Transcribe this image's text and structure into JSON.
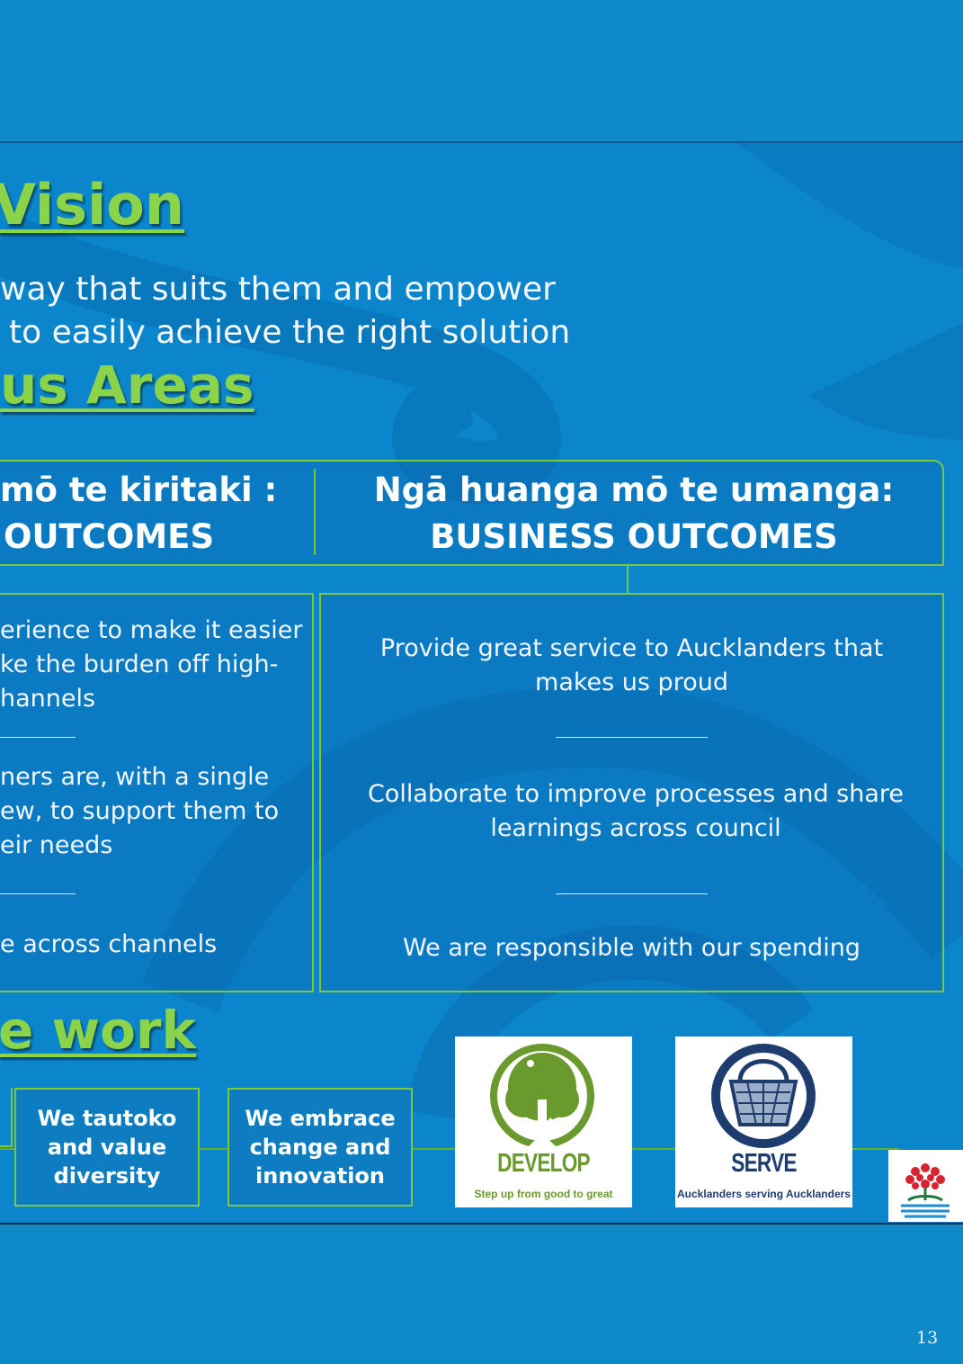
{
  "vision": {
    "heading": "Vision",
    "line1": "way that suits them and empower",
    "line2": "to easily achieve the right solution"
  },
  "focus": {
    "heading": "us Areas"
  },
  "customer": {
    "header_line1": "mō te kiritaki :",
    "header_line2": "OUTCOMES",
    "item1": [
      "erience to make it easier",
      "ke the burden off high-",
      "hannels"
    ],
    "item2": [
      "ners are, with a single",
      "ew, to support them to",
      "eir needs"
    ],
    "item3": [
      "e across channels"
    ]
  },
  "business": {
    "header_line1": "Ngā huanga mō te umanga:",
    "header_line2": "BUSINESS OUTCOMES",
    "item1": [
      "Provide great service to Aucklanders that",
      "makes us proud"
    ],
    "item2": [
      "Collaborate to improve processes and share",
      "learnings across council"
    ],
    "item3": [
      "We are responsible with our spending"
    ]
  },
  "how": {
    "heading": "e work"
  },
  "values": [
    [
      "We tautoko",
      "and value",
      "diversity"
    ],
    [
      "We embrace",
      "change and",
      "innovation"
    ]
  ],
  "develop_logo": {
    "word": "DEVELOP",
    "tagline": "Step up from good to great"
  },
  "serve_logo": {
    "word": "SERVE",
    "tagline": "Aucklanders serving Aucklanders"
  },
  "page_number": "13",
  "colors": {
    "accent_green": "#8bd44a",
    "box_border": "#7cc83d",
    "background_blue": "#0b86cc",
    "develop_green": "#6a9a2e",
    "serve_navy": "#1e3d6e"
  }
}
